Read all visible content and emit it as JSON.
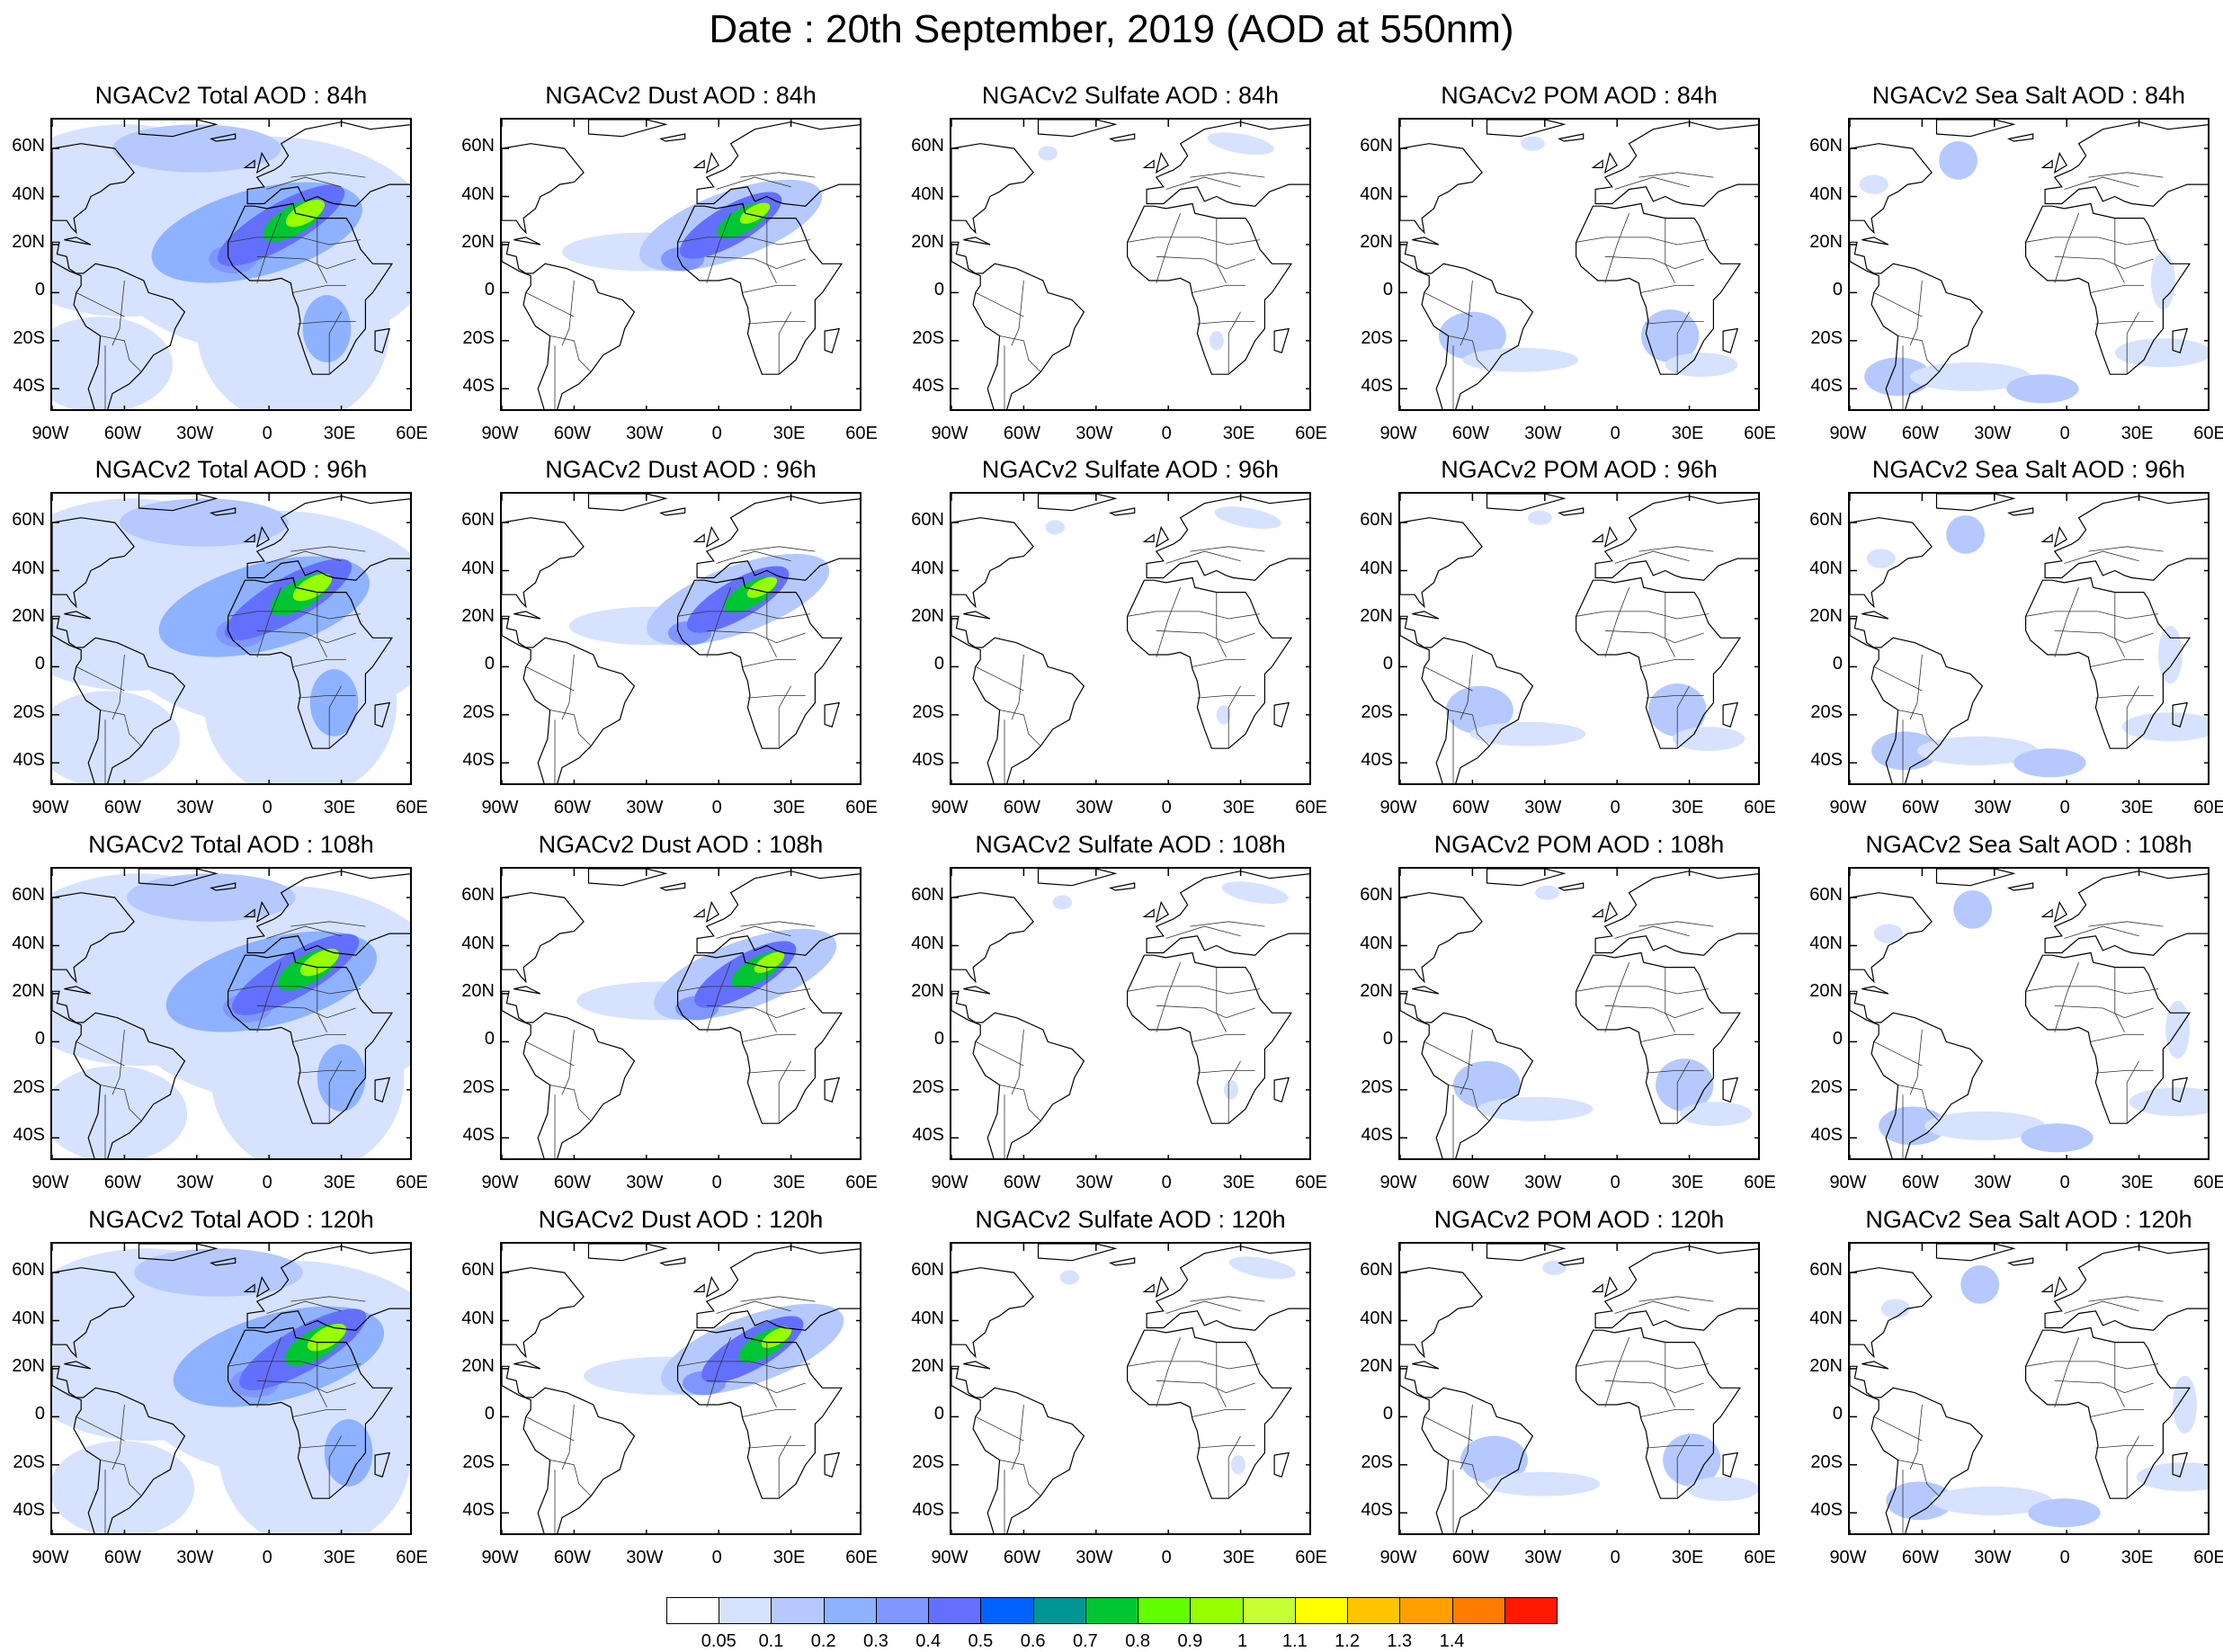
{
  "title": "Date : 20th September, 2019 (AOD at 550nm)",
  "panel_titles": [
    [
      "NGACv2 Total AOD : 84h",
      "NGACv2 Dust AOD : 84h",
      "NGACv2 Sulfate AOD : 84h",
      "NGACv2 POM AOD : 84h",
      "NGACv2 Sea Salt AOD : 84h"
    ],
    [
      "NGACv2 Total AOD : 96h",
      "NGACv2 Dust AOD : 96h",
      "NGACv2 Sulfate AOD : 96h",
      "NGACv2 POM AOD : 96h",
      "NGACv2 Sea Salt AOD : 96h"
    ],
    [
      "NGACv2 Total AOD : 108h",
      "NGACv2 Dust AOD : 108h",
      "NGACv2 Sulfate AOD : 108h",
      "NGACv2 POM AOD : 108h",
      "NGACv2 Sea Salt AOD : 108h"
    ],
    [
      "NGACv2 Total AOD : 120h",
      "NGACv2 Dust AOD : 120h",
      "NGACv2 Sulfate AOD : 120h",
      "NGACv2 POM AOD : 120h",
      "NGACv2 Sea Salt  AOD : 120h"
    ]
  ],
  "lat_ticks": [
    "60N",
    "40N",
    "20N",
    "0",
    "20S",
    "40S"
  ],
  "lon_ticks": [
    "90W",
    "60W",
    "30W",
    "0",
    "30E",
    "60E"
  ],
  "colorbar": {
    "labels": [
      "0.05",
      "0.1",
      "0.2",
      "0.3",
      "0.4",
      "0.5",
      "0.6",
      "0.7",
      "0.8",
      "0.9",
      "1",
      "1.1",
      "1.2",
      "1.3",
      "1.4"
    ],
    "colors": [
      "#ffffff",
      "#d6e2ff",
      "#b5c9ff",
      "#8eb2ff",
      "#7f96ff",
      "#6370ff",
      "#0063ff",
      "#009696",
      "#00c633",
      "#63ff00",
      "#96ff00",
      "#c6ff33",
      "#ffff00",
      "#ffc600",
      "#ffa000",
      "#ff7c00",
      "#ff1900"
    ]
  }
}
